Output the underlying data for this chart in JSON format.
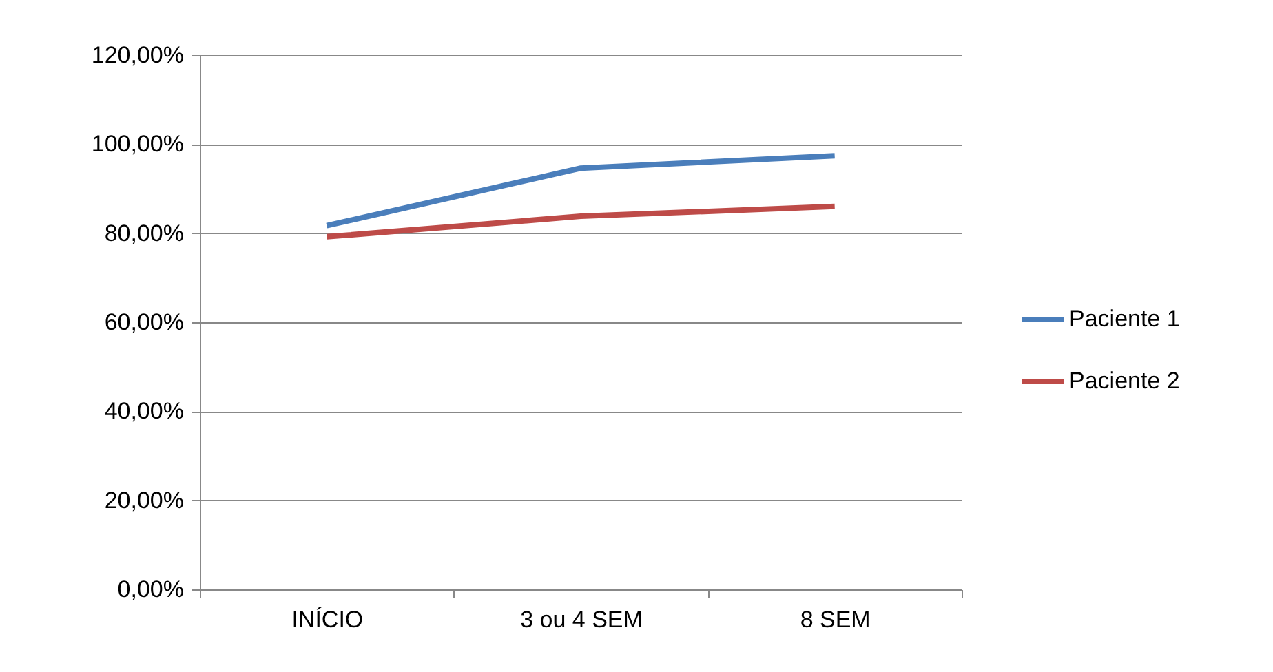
{
  "chart_data": {
    "type": "line",
    "categories": [
      "INÍCIO",
      "3 ou 4 SEM",
      "8 SEM"
    ],
    "series": [
      {
        "name": "Paciente 1",
        "color": "#4a7ebb",
        "values": [
          81.7,
          94.6,
          97.4
        ]
      },
      {
        "name": "Paciente 2",
        "color": "#be4b48",
        "values": [
          79.2,
          83.8,
          86.0
        ]
      }
    ],
    "ylim": [
      0,
      120
    ],
    "yticks": [
      {
        "value": 0,
        "label": "0,00%"
      },
      {
        "value": 20,
        "label": "20,00%"
      },
      {
        "value": 40,
        "label": "40,00%"
      },
      {
        "value": 60,
        "label": "60,00%"
      },
      {
        "value": 80,
        "label": "80,00%"
      },
      {
        "value": 100,
        "label": "100,00%"
      },
      {
        "value": 120,
        "label": "120,00%"
      }
    ],
    "grid": "y",
    "legend": "right",
    "marker": "none",
    "line_style": "solid"
  }
}
